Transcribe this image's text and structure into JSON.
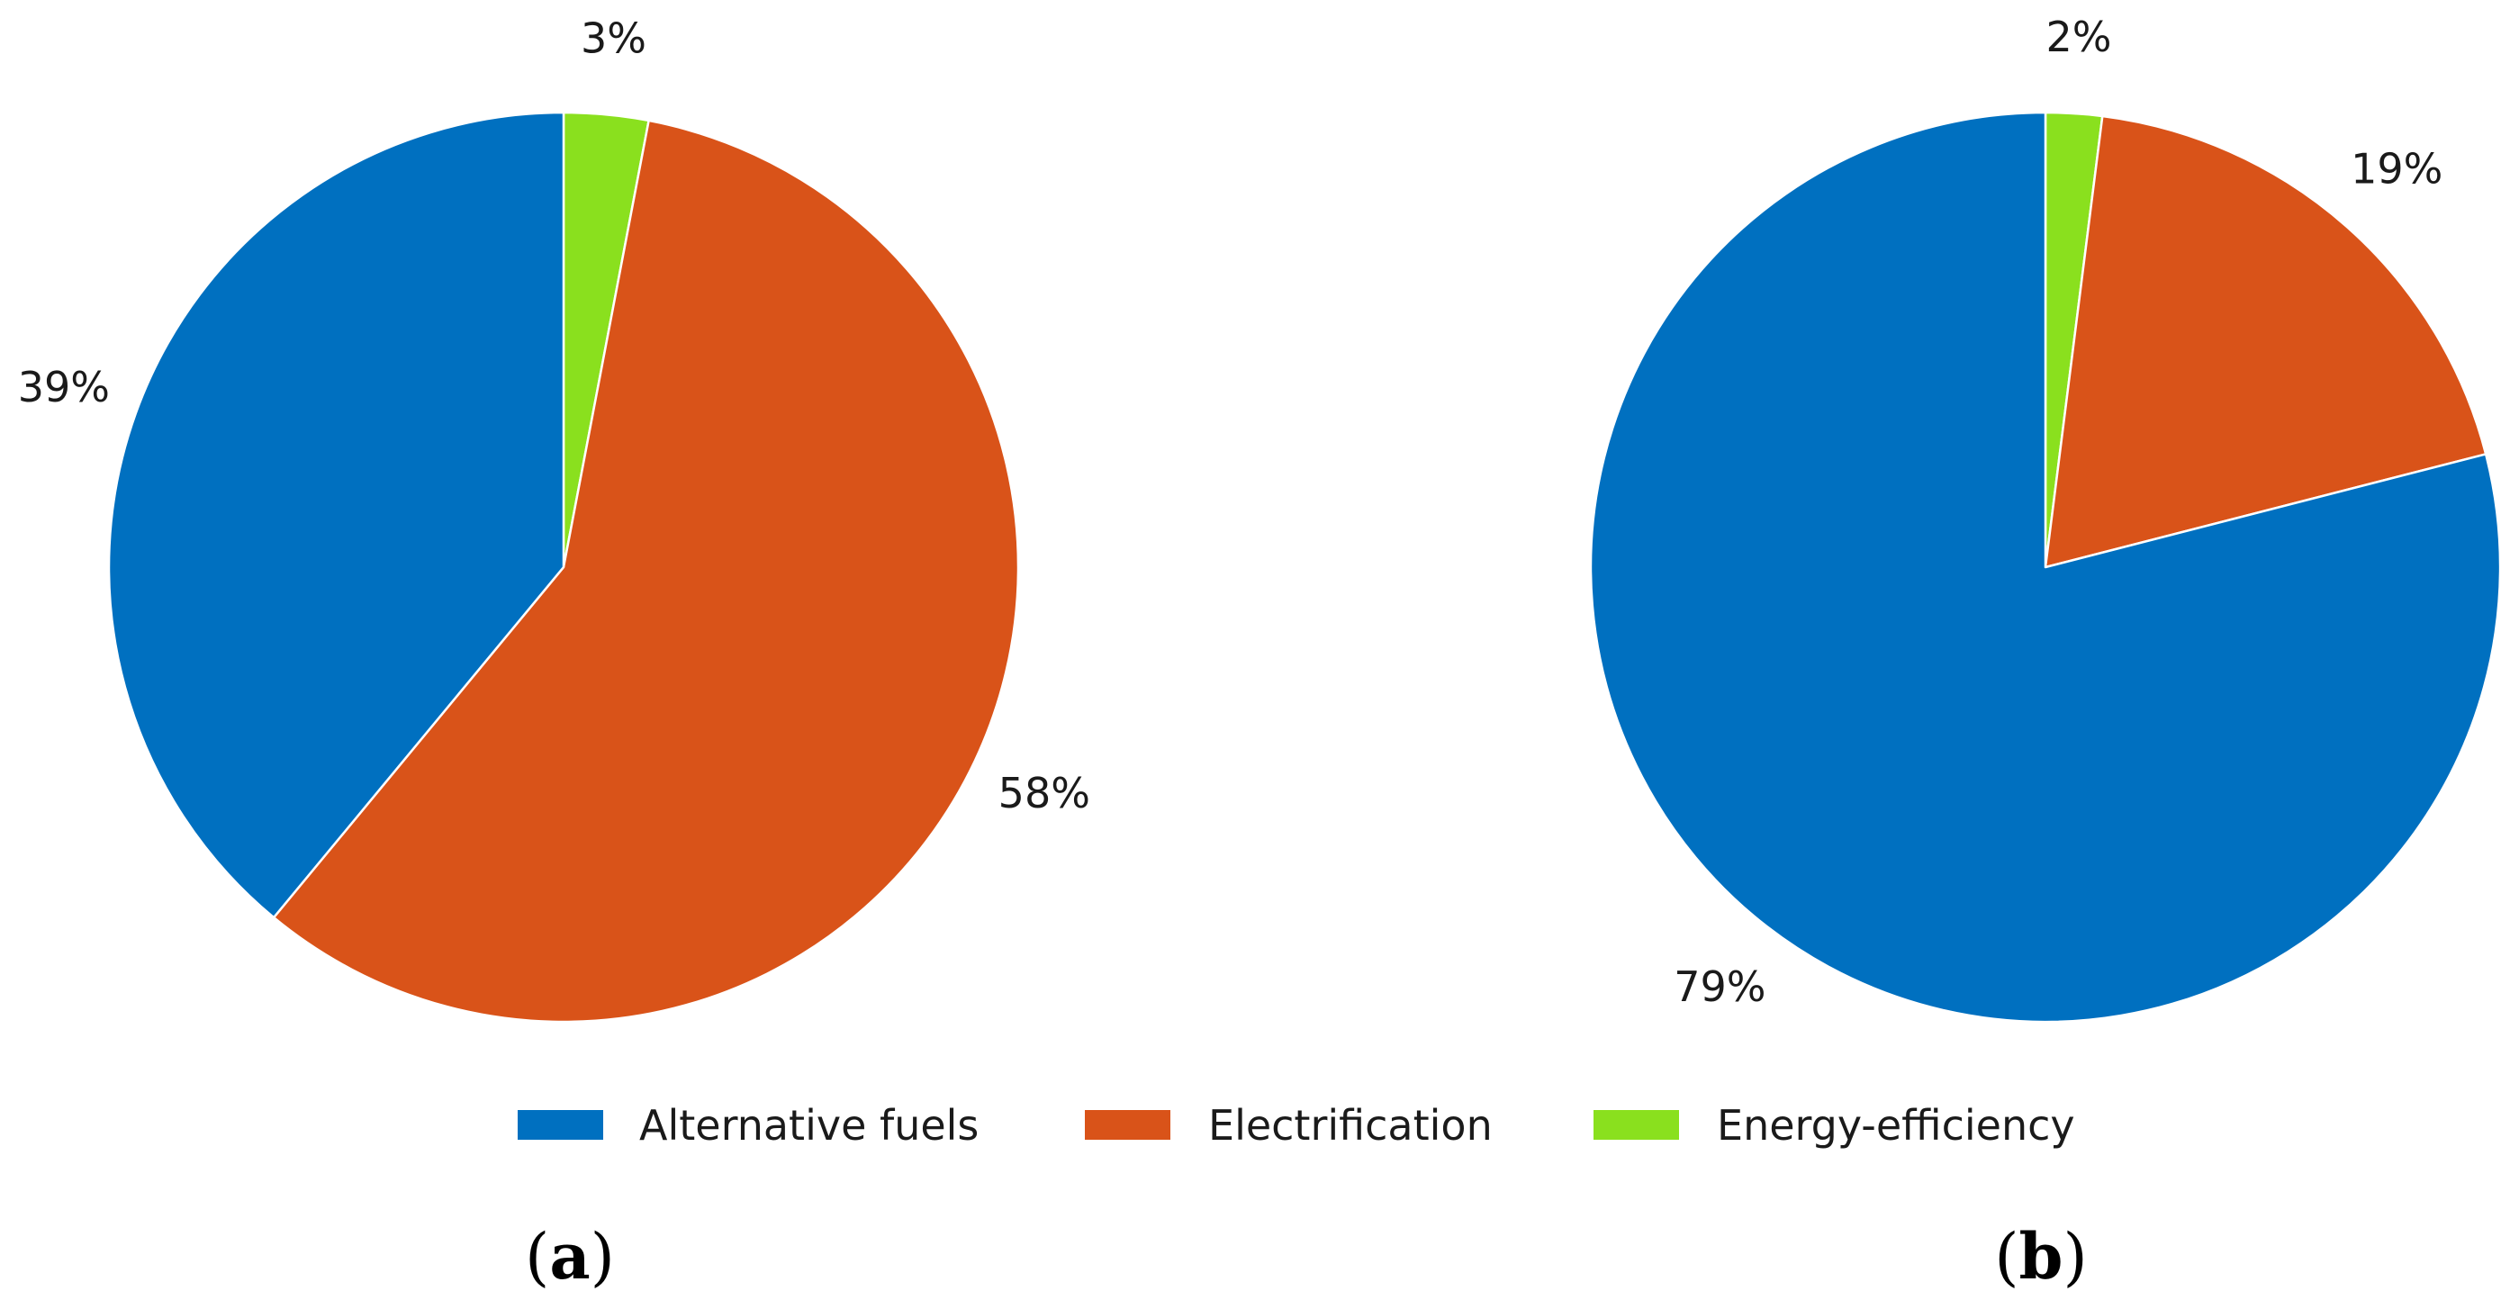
{
  "colors": {
    "alternative_fuels": "#0070C0",
    "electrification": "#D95319",
    "energy_efficiency": "#8AE01E",
    "wedge_edge": "#ffffff"
  },
  "legend": {
    "placement": "bottom-center",
    "entries": [
      {
        "label": "Alternative fuels",
        "color_key": "alternative_fuels"
      },
      {
        "label": "Electrification",
        "color_key": "electrification"
      },
      {
        "label": "Energy-efficiency",
        "color_key": "energy_efficiency"
      }
    ]
  },
  "chart_data": [
    {
      "type": "pie",
      "panel": "a",
      "start_angle": "12 o'clock",
      "direction": "clockwise",
      "slices": [
        {
          "label": "Energy-efficiency",
          "value": 3,
          "display": "3%",
          "color_key": "energy_efficiency"
        },
        {
          "label": "Electrification",
          "value": 58,
          "display": "58%",
          "color_key": "electrification"
        },
        {
          "label": "Alternative fuels",
          "value": 39,
          "display": "39%",
          "color_key": "alternative_fuels"
        }
      ]
    },
    {
      "type": "pie",
      "panel": "b",
      "start_angle": "12 o'clock",
      "direction": "clockwise",
      "slices": [
        {
          "label": "Energy-efficiency",
          "value": 2,
          "display": "2%",
          "color_key": "energy_efficiency"
        },
        {
          "label": "Electrification",
          "value": 19,
          "display": "19%",
          "color_key": "electrification"
        },
        {
          "label": "Alternative fuels",
          "value": 79,
          "display": "79%",
          "color_key": "alternative_fuels"
        }
      ]
    }
  ],
  "panel_labels": [
    {
      "open": "(",
      "letter": "a",
      "close": ")"
    },
    {
      "open": "(",
      "letter": "b",
      "close": ")"
    }
  ]
}
